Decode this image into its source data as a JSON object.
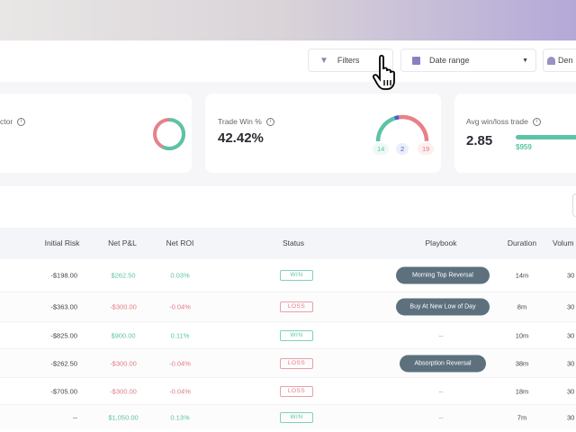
{
  "toolbar": {
    "filters": "Filters",
    "date_range": "Date range",
    "third_button": "Den"
  },
  "cards": [
    {
      "label": "ctor",
      "ring": {
        "green_fraction": 0.58,
        "colors": {
          "green": "#5cc4a6",
          "red": "#e88088"
        }
      }
    },
    {
      "label": "Trade Win %",
      "value": "42.42%",
      "gauge": {
        "win": 14,
        "breakeven": 2,
        "loss": 19
      },
      "win_count": "14",
      "be_count": "2",
      "loss_count": "19"
    },
    {
      "label": "Avg win/loss trade",
      "value": "2.85",
      "avg_win": "$959"
    }
  ],
  "table": {
    "headers": [
      "Initial Risk",
      "Net P&L",
      "Net ROI",
      "Status",
      "Playbook",
      "Duration",
      "Volum"
    ],
    "rows": [
      {
        "risk": "-$198.00",
        "pnl": "$262.50",
        "roi": "0.03%",
        "status": "WIN",
        "playbook": "Morning Top Reversal",
        "duration": "14m",
        "volume": "30"
      },
      {
        "risk": "-$363.00",
        "pnl": "-$300.00",
        "roi": "-0.04%",
        "status": "LOSS",
        "playbook": "Buy At New Low of Day",
        "duration": "8m",
        "volume": "30"
      },
      {
        "risk": "-$825.00",
        "pnl": "$900.00",
        "roi": "0.11%",
        "status": "WIN",
        "playbook": "--",
        "duration": "10m",
        "volume": "30"
      },
      {
        "risk": "-$262.50",
        "pnl": "-$300.00",
        "roi": "-0.04%",
        "status": "LOSS",
        "playbook": "Absorption Reversal",
        "duration": "38m",
        "volume": "30"
      },
      {
        "risk": "-$705.00",
        "pnl": "-$300.00",
        "roi": "-0.04%",
        "status": "LOSS",
        "playbook": "--",
        "duration": "18m",
        "volume": "30"
      },
      {
        "risk": "--",
        "pnl": "$1,050.00",
        "roi": "0.13%",
        "status": "WIN",
        "playbook": "--",
        "duration": "7m",
        "volume": "30"
      }
    ]
  },
  "colors": {
    "win": "#5cc4a6",
    "loss": "#e07b85",
    "breakeven": "#4a5bd6",
    "playbook_bg": "#5c707d"
  }
}
